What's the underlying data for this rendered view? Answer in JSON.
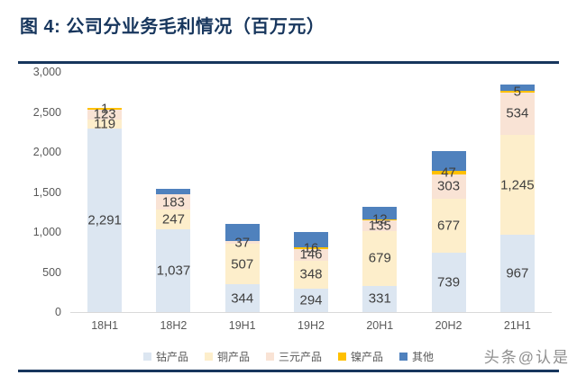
{
  "header": {
    "title": "图 4:  公司分业务毛利情况（百万元）",
    "accent_color": "#17365d"
  },
  "chart_data": {
    "type": "bar",
    "variant": "stacked",
    "title": "公司分业务毛利情况（百万元）",
    "unit": "百万元",
    "categories": [
      "18H1",
      "18H2",
      "19H1",
      "19H2",
      "20H1",
      "20H2",
      "21H1"
    ],
    "series": [
      {
        "name": "钴产品",
        "color": "#dce6f1",
        "values": [
          2291,
          1037,
          344,
          294,
          331,
          739,
          967
        ],
        "labels": [
          "2,291",
          "1,037",
          "344",
          "294",
          "331",
          "739",
          "967"
        ]
      },
      {
        "name": "铜产品",
        "color": "#fdeecb",
        "values": [
          119,
          247,
          507,
          348,
          679,
          677,
          1245
        ],
        "labels": [
          "119",
          "247",
          "507",
          "348",
          "679",
          "677",
          "1,245"
        ]
      },
      {
        "name": "三元产品",
        "color": "#f9e3d5",
        "values": [
          123,
          183,
          37,
          146,
          135,
          303,
          534
        ],
        "labels": [
          "123",
          "183",
          "37",
          "146",
          "135",
          "303",
          "534"
        ]
      },
      {
        "name": "镍产品",
        "color": "#ffc000",
        "values": [
          1,
          0,
          0,
          16,
          12,
          47,
          5
        ],
        "labels": [
          "1",
          null,
          null,
          "16",
          "12",
          "47",
          "5"
        ]
      },
      {
        "name": "其他",
        "color": "#4f81bd",
        "values": [
          0,
          70,
          210,
          195,
          155,
          245,
          80
        ],
        "labels": [
          null,
          null,
          null,
          null,
          null,
          null,
          null
        ],
        "values_estimated": true
      }
    ],
    "ylim": [
      0,
      3000
    ],
    "yticks": [
      {
        "value": 0,
        "label": "0"
      },
      {
        "value": 500,
        "label": "500"
      },
      {
        "value": 1000,
        "label": "1,000"
      },
      {
        "value": 1500,
        "label": "1,500"
      },
      {
        "value": 2000,
        "label": "2,000"
      },
      {
        "value": 2500,
        "label": "2,500"
      },
      {
        "value": 3000,
        "label": "3,000"
      }
    ],
    "grid": false,
    "legend_position": "bottom"
  },
  "watermark": {
    "text": "头条@认是"
  }
}
